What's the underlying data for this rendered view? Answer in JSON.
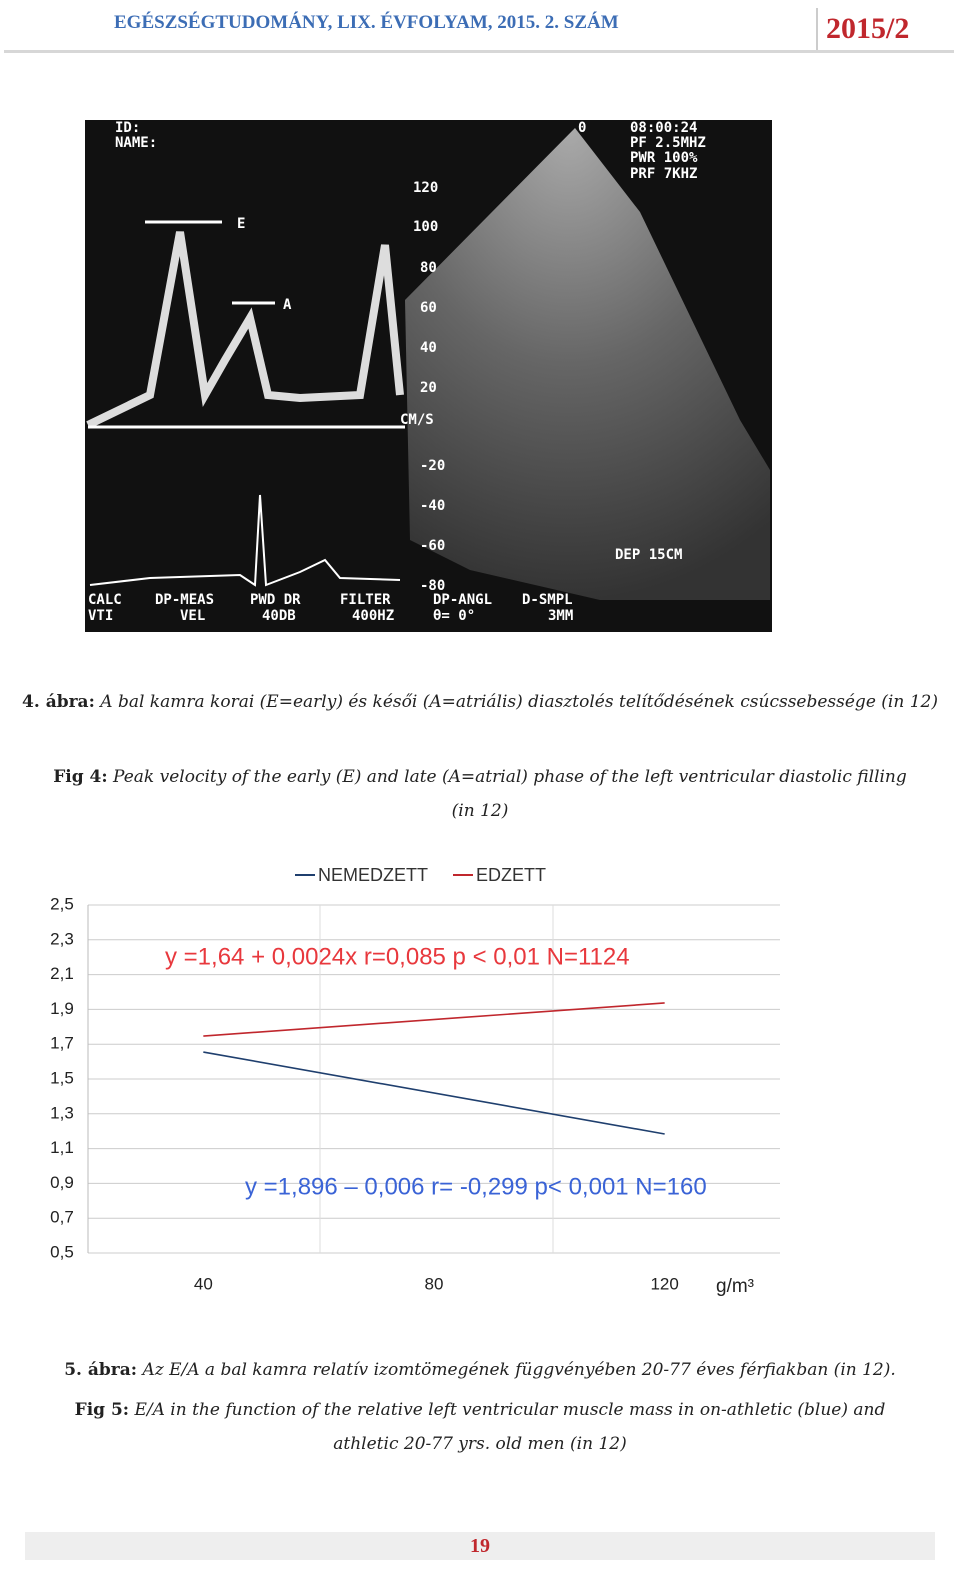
{
  "header": {
    "journal": "EGÉSZSÉGTUDOMÁNY, LIX. ÉVFOLYAM, 2015. 2. SZÁM",
    "issue": "2015/2"
  },
  "figure4": {
    "image_texts": [
      "ID:",
      "NAME:",
      "0",
      "08:00:24",
      "PF 2.5MHZ",
      "PWR 100%",
      "PRF 7KHZ",
      "E",
      "A",
      "120",
      "100",
      "80",
      "60",
      "40",
      "20",
      "CM/S",
      "-20",
      "-40",
      "-60",
      "-80",
      "DEP 15CM",
      "CALC",
      "VTI",
      "DP-MEAS",
      "VEL",
      "PWD DR",
      "40DB",
      "FILTER",
      "400HZ",
      "DP-ANGL",
      "θ= 0°",
      "D-SMPL",
      "3MM"
    ],
    "caption_hu_label": "4. ábra:",
    "caption_hu": "A bal kamra korai (E=early) és késői (A=atriális) diasztolés telítődésének csúcssebessége (in 12)",
    "caption_en_label": "Fig 4:",
    "caption_en": "Peak velocity of the early (E) and late (A=atrial) phase of the left ventricular diastolic filling (in 12)"
  },
  "chart_data": {
    "type": "line",
    "x": [
      40,
      120
    ],
    "xlim": [
      20,
      140
    ],
    "xticks": [
      40,
      80,
      120
    ],
    "x_label": "g/m³",
    "ylim": [
      0.5,
      2.5
    ],
    "yticks": [
      {
        "value": 0.5,
        "label": "0,5"
      },
      {
        "value": 0.7,
        "label": "0,7"
      },
      {
        "value": 0.9,
        "label": "0,9"
      },
      {
        "value": 1.1,
        "label": "1,1"
      },
      {
        "value": 1.3,
        "label": "1,3"
      },
      {
        "value": 1.5,
        "label": "1,5"
      },
      {
        "value": 1.7,
        "label": "1,7"
      },
      {
        "value": 1.9,
        "label": "1,9"
      },
      {
        "value": 2.1,
        "label": "2,1"
      },
      {
        "value": 2.3,
        "label": "2,3"
      },
      {
        "value": 2.5,
        "label": "2,5"
      }
    ],
    "grid": true,
    "series": [
      {
        "name": "NEMEDZETT",
        "color": "#1f3f6e",
        "values": [
          1.655,
          1.184
        ]
      },
      {
        "name": "EDZETT",
        "color": "#c0272d",
        "values": [
          1.747,
          1.937
        ]
      }
    ],
    "annotations": [
      {
        "text": "y =1,64 + 0,0024x  r=0,085   p < 0,01  N=1124",
        "color": "#e8383d"
      },
      {
        "text": "y =1,896 – 0,006  r= -0,299 p< 0,001 N=160",
        "color": "#3a63d6"
      }
    ]
  },
  "figure5": {
    "caption_hu_label": "5. ábra:",
    "caption_hu": "Az E/A a bal kamra relatív izomtömegének függvényében 20-77 éves férfiakban (in 12).",
    "caption_en_label": "Fig 5:",
    "caption_en_1": "E/A in the function of the relative left ventricular muscle mass in on-athletic (blue) and",
    "caption_en_2": "athletic 20-77 yrs. old men (in 12)"
  },
  "page_number": "19"
}
